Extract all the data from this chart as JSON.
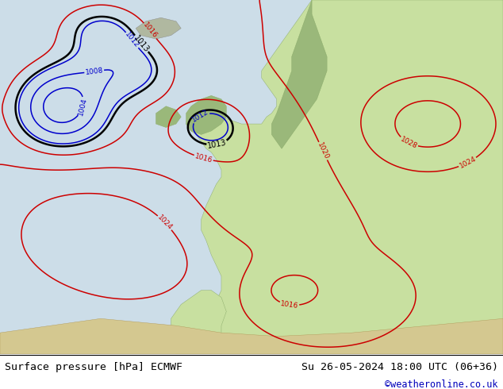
{
  "title_left": "Surface pressure [hPa] ECMWF",
  "title_right": "Su 26-05-2024 18:00 UTC (06+36)",
  "copyright": "©weatheronline.co.uk",
  "ocean_color": "#ccdde8",
  "land_color": "#c8e0a0",
  "land_dark_color": "#9ab87a",
  "mountain_color": "#b0b8a0",
  "africa_color": "#d4c890",
  "footer_text_color": "#000000",
  "copyright_color": "#0000bb",
  "contour_blue": "#0000cc",
  "contour_black": "#000000",
  "contour_red": "#cc0000"
}
